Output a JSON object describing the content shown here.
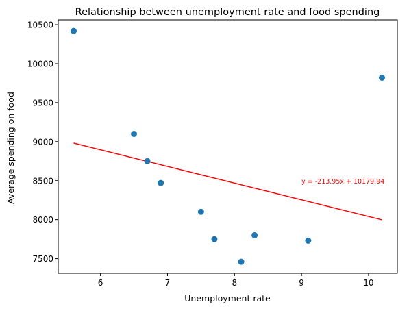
{
  "chart_data": {
    "type": "scatter",
    "title": "Relationship between unemployment rate and food spending",
    "xlabel": "Unemployment rate",
    "ylabel": "Average spending on food",
    "xlim": [
      5.37,
      10.43
    ],
    "ylim": [
      7312,
      10562
    ],
    "x_ticks": [
      6,
      7,
      8,
      9,
      10
    ],
    "y_ticks": [
      7500,
      8000,
      8500,
      9000,
      9500,
      10000,
      10500
    ],
    "points": [
      {
        "x": 5.6,
        "y": 10420
      },
      {
        "x": 6.5,
        "y": 9100
      },
      {
        "x": 6.7,
        "y": 8750
      },
      {
        "x": 6.9,
        "y": 8470
      },
      {
        "x": 7.5,
        "y": 8100
      },
      {
        "x": 7.7,
        "y": 7750
      },
      {
        "x": 8.1,
        "y": 7460
      },
      {
        "x": 8.3,
        "y": 7800
      },
      {
        "x": 9.1,
        "y": 7730
      },
      {
        "x": 10.2,
        "y": 9820
      }
    ],
    "trendline": {
      "slope": -213.95,
      "intercept": 10179.94,
      "x_range": [
        5.6,
        10.2
      ],
      "label": "y = -213.95x + 10179.94",
      "label_position": {
        "x": 9.0,
        "y": 8500
      }
    },
    "grid": false,
    "colors": {
      "points": "#1f77b4",
      "trendline": "#ff0000",
      "annotation": "#ff0000",
      "axes": "#000000"
    }
  }
}
